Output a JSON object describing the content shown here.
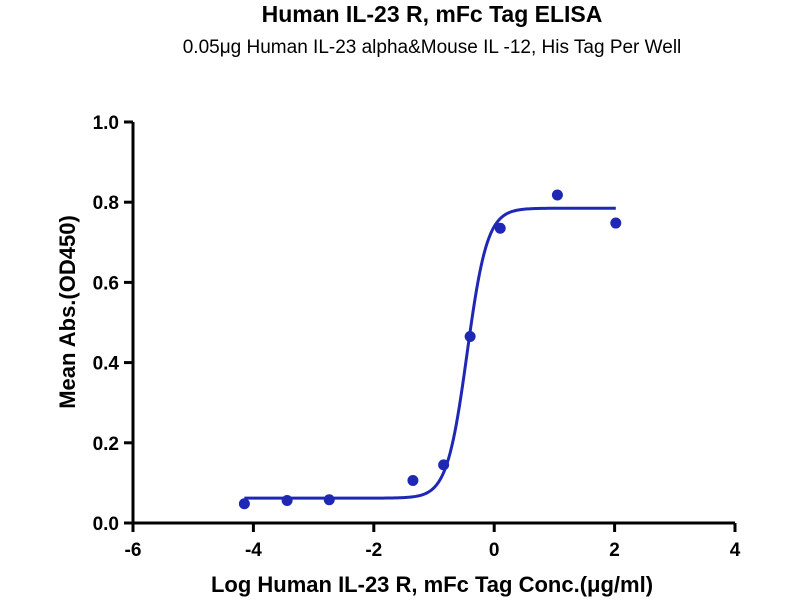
{
  "chart_data": {
    "type": "scatter",
    "title": "Human IL-23 R, mFc Tag ELISA",
    "subtitle": "0.05μg Human IL-23 alpha&Mouse IL -12, His Tag Per Well",
    "xlabel": "Log Human IL-23 R,  mFc Tag Conc.(μg/ml)",
    "ylabel": "Mean Abs.(OD450)",
    "xlim": [
      -6,
      4
    ],
    "ylim": [
      0.0,
      1.0
    ],
    "x_ticks": [
      "-6",
      "-4",
      "-2",
      "0",
      "2",
      "4"
    ],
    "y_ticks": [
      "0.0",
      "0.2",
      "0.4",
      "0.6",
      "0.8",
      "1.0"
    ],
    "grid": false,
    "series": [
      {
        "color": "#1f28b4",
        "points": [
          {
            "x": -4.15,
            "y": 0.048
          },
          {
            "x": -3.44,
            "y": 0.056
          },
          {
            "x": -2.74,
            "y": 0.058
          },
          {
            "x": -1.35,
            "y": 0.106
          },
          {
            "x": -0.84,
            "y": 0.145
          },
          {
            "x": -0.4,
            "y": 0.465
          },
          {
            "x": 0.1,
            "y": 0.735
          },
          {
            "x": 1.05,
            "y": 0.818
          },
          {
            "x": 2.02,
            "y": 0.748
          }
        ],
        "fit": {
          "model": "4PL",
          "bottom": 0.062,
          "top": 0.785,
          "logEC50": -0.45,
          "hill": 2.6,
          "x_range": [
            -4.15,
            2.02
          ]
        }
      }
    ]
  }
}
